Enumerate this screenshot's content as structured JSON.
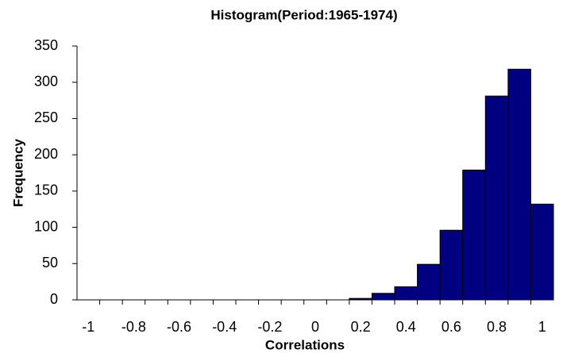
{
  "chart_data": {
    "type": "bar",
    "title": "Histogram(Period:1965-1974)",
    "x_label": "Correlations",
    "y_label": "Frequency",
    "categories": [
      "-1",
      null,
      "-0.8",
      null,
      "-0.6",
      null,
      "-0.4",
      null,
      "-0.2",
      null,
      "0",
      null,
      "0.2",
      null,
      "0.4",
      null,
      "0.6",
      null,
      "0.8",
      null,
      "1"
    ],
    "values": [
      0,
      0,
      0,
      0,
      0,
      0,
      0,
      0,
      0,
      0,
      0,
      0,
      2,
      9,
      18,
      49,
      96,
      179,
      281,
      318,
      132
    ],
    "color": "#000080",
    "ylim": [
      0,
      350
    ],
    "yticks": [
      0,
      50,
      100,
      150,
      200,
      250,
      300,
      350
    ],
    "grid": false
  }
}
